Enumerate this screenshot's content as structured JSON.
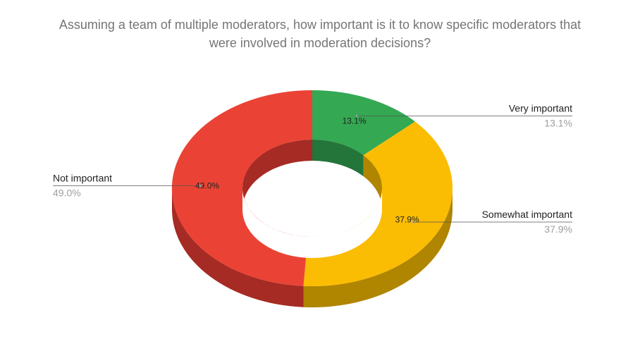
{
  "chart_data": {
    "type": "pie",
    "title_lines": [
      "Assuming a team of multiple moderators, how important is it to know specific moderators that",
      "were involved in moderation decisions?"
    ],
    "slices": [
      {
        "label": "Very important",
        "value": 13.1,
        "value_label": "13.1%",
        "color": "#34a853",
        "side_color": "#237539"
      },
      {
        "label": "Somewhat important",
        "value": 37.9,
        "value_label": "37.9%",
        "color": "#fbbc04",
        "side_color": "#b08500"
      },
      {
        "label": "Not important",
        "value": 49.0,
        "value_label": "49.0%",
        "color": "#ea4335",
        "side_color": "#a52b24"
      }
    ],
    "style": "3d-donut",
    "legend": "labeled-callouts",
    "start": "top",
    "direction": "clockwise"
  }
}
